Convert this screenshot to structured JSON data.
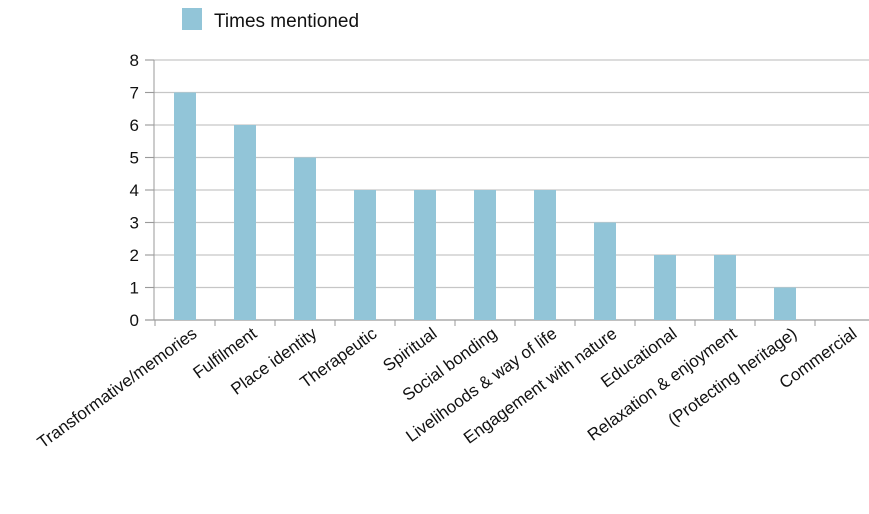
{
  "chart_data": {
    "type": "bar",
    "legend": {
      "label": "Times mentioned",
      "position": "top-left"
    },
    "series": [
      {
        "name": "Times mentioned",
        "color": "#92c5d8",
        "values": [
          7,
          6,
          5,
          4,
          4,
          4,
          4,
          3,
          2,
          2,
          1,
          0
        ]
      }
    ],
    "categories": [
      "Transformative/memories",
      "Fulfilment",
      "Place identity",
      "Therapeutic",
      "Spiritual",
      "Social bonding",
      "Livelihoods & way of life",
      "Engagement with nature",
      "Educational",
      "Relaxation & enjoyment",
      "(Protecting heritage)",
      "Commercial"
    ],
    "ylim": [
      0,
      8
    ],
    "yticks": [
      "0",
      "1",
      "2",
      "3",
      "4",
      "5",
      "6",
      "7",
      "8"
    ],
    "grid": true,
    "colors": {
      "bar": "#92c5d8",
      "grid": "#c6c6c6",
      "axis": "#9a9a9a"
    }
  }
}
